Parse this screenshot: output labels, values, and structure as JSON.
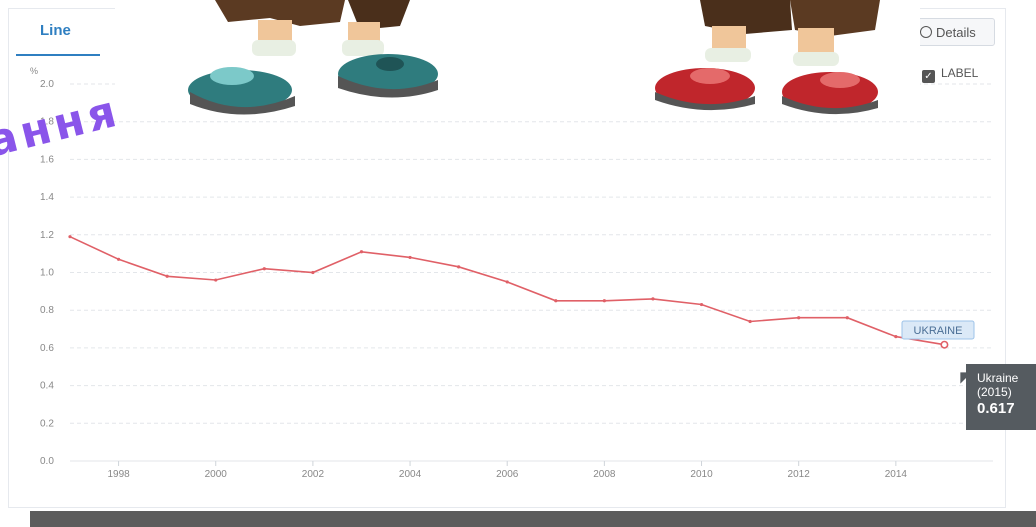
{
  "tabs": {
    "line_label": "Line",
    "details_label": "Details"
  },
  "label_toggle": {
    "text": "LABEL",
    "checked": true
  },
  "series_label": "UKRAINE",
  "tooltip": {
    "country": "Ukraine",
    "year": "(2015)",
    "value": "0.617"
  },
  "overlay_text": "ання",
  "colors": {
    "accent": "#2f7fc1",
    "line": "#e06067",
    "series_tag_bg": "#dbe9f7",
    "tooltip_bg": "#555b60",
    "overlay_text": "#8a55ea"
  },
  "chart_data": {
    "type": "line",
    "ylabel": "%",
    "ylim": [
      0,
      2.0
    ],
    "yticks": [
      "0.0",
      "0.2",
      "0.4",
      "0.6",
      "0.8",
      "1.0",
      "1.2",
      "1.4",
      "1.6",
      "1.8",
      "2.0"
    ],
    "xlim": [
      1997,
      2016
    ],
    "xticks": [
      "1998",
      "2000",
      "2002",
      "2004",
      "2006",
      "2008",
      "2010",
      "2012",
      "2014"
    ],
    "grid": true,
    "series": [
      {
        "name": "UKRAINE",
        "x": [
          1997,
          1998,
          1999,
          2000,
          2001,
          2002,
          2003,
          2004,
          2005,
          2006,
          2007,
          2008,
          2009,
          2010,
          2011,
          2012,
          2013,
          2014,
          2015
        ],
        "values": [
          1.19,
          1.07,
          0.98,
          0.96,
          1.02,
          1.0,
          1.11,
          1.08,
          1.03,
          0.95,
          0.85,
          0.85,
          0.86,
          0.83,
          0.74,
          0.76,
          0.76,
          0.66,
          0.617
        ]
      }
    ]
  }
}
